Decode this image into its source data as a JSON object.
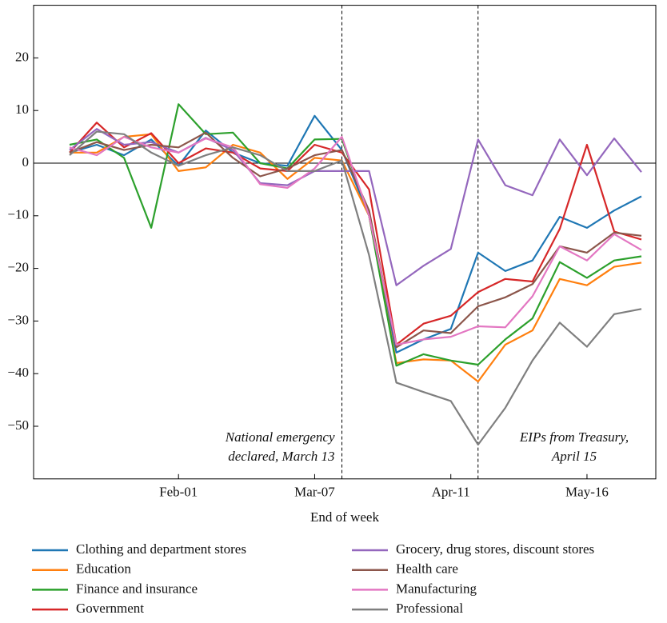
{
  "chart_data": {
    "type": "line",
    "x_label": "End of week",
    "categories": [
      null,
      null,
      null,
      null,
      "Feb-01",
      null,
      null,
      null,
      null,
      "Mar-07",
      null,
      null,
      null,
      null,
      "Apr-11",
      null,
      null,
      null,
      null,
      "May-16",
      null,
      null
    ],
    "ylim": [
      -60,
      30
    ],
    "yticks": [
      {
        "value": -50,
        "label": "−50"
      },
      {
        "value": -40,
        "label": "−40"
      },
      {
        "value": -30,
        "label": "−30"
      },
      {
        "value": -20,
        "label": "−20"
      },
      {
        "value": -10,
        "label": "−10"
      },
      0,
      10,
      20
    ],
    "zero_line": true,
    "annotations": [
      {
        "lines": [
          "National emergency",
          "declared, March 13"
        ]
      },
      {
        "lines": [
          "EIPs from Treasury,",
          "April 15"
        ]
      }
    ],
    "series": [
      {
        "name": "Clothing and department stores",
        "color": "#1f77b4",
        "values": [
          2,
          3.5,
          1.5,
          4.5,
          -0.5,
          6.2,
          2,
          0,
          -0.5,
          9,
          2.5,
          -10,
          -36,
          -33.5,
          -31.5,
          -17,
          -20.5,
          -18.5,
          -10.2,
          -12.3,
          -9,
          -6.3
        ]
      },
      {
        "name": "Education",
        "color": "#ff7f0e",
        "values": [
          2,
          2,
          5,
          5.5,
          -1.5,
          -0.8,
          3.5,
          2,
          -3,
          1,
          0.5,
          -10,
          -38,
          -37.3,
          -37.5,
          -41.5,
          -34.5,
          -31.8,
          -22,
          -23.2,
          -19.7,
          -18.9
        ]
      },
      {
        "name": "Finance and insurance",
        "color": "#2ca02c",
        "values": [
          3.5,
          4.5,
          1,
          -12.3,
          11.2,
          5.5,
          5.8,
          0,
          -1,
          4.5,
          4.6,
          -10,
          -38.5,
          -36.3,
          -37.5,
          -38.3,
          -33.5,
          -29.5,
          -18.8,
          -21.8,
          -18.5,
          -17.7
        ]
      },
      {
        "name": "Government",
        "color": "#d62728",
        "values": [
          2,
          7.7,
          3,
          5.7,
          0,
          2.8,
          2,
          -1,
          -1.5,
          3.5,
          2,
          -5,
          -34.5,
          -30.5,
          -29,
          -24.5,
          -22,
          -22.5,
          -12.5,
          3.5,
          -13,
          -14.5
        ]
      },
      {
        "name": "Grocery, drug stores, discount stores",
        "color": "#9467bd",
        "values": [
          2.5,
          6.5,
          3.5,
          4,
          2,
          4.8,
          2.5,
          -3.8,
          -4.2,
          -1.5,
          -1.5,
          -1.5,
          -23.2,
          -19.5,
          -16.3,
          4.5,
          -4.2,
          -6.1,
          4.5,
          -2.3,
          4.7,
          -1.7
        ]
      },
      {
        "name": "Health care",
        "color": "#8c564b",
        "values": [
          2,
          4,
          2.5,
          3.5,
          3,
          5.8,
          1,
          -2.5,
          -1,
          1.5,
          2.5,
          -9,
          -35,
          -31.8,
          -32.3,
          -27.2,
          -25.5,
          -23,
          -15.8,
          -17,
          -13.2,
          -13.8
        ]
      },
      {
        "name": "Manufacturing",
        "color": "#e377c2",
        "values": [
          3,
          1.5,
          5,
          3,
          2,
          4.7,
          3,
          -4,
          -4.7,
          -1,
          5,
          -10,
          -34.5,
          -33.5,
          -33,
          -31,
          -31.2,
          -25.3,
          -15.8,
          -18.5,
          -13.5,
          -16.5
        ]
      },
      {
        "name": "Professional",
        "color": "#7f7f7f",
        "values": [
          1.5,
          6,
          5.5,
          2,
          -0.5,
          1.5,
          3,
          1.5,
          -1.5,
          -1.5,
          0.5,
          -17.5,
          -41.7,
          -43.5,
          -45.2,
          -53.5,
          -46.5,
          -37.5,
          -30.3,
          -34.9,
          -28.7,
          -27.7
        ]
      }
    ]
  }
}
